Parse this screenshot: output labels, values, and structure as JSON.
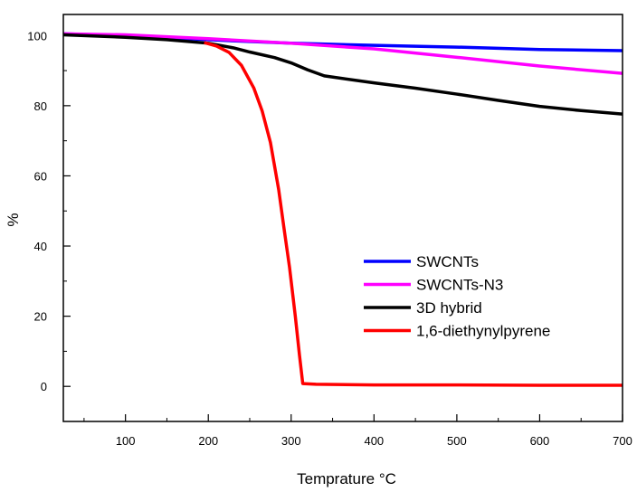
{
  "chart_data": {
    "type": "line",
    "title": "",
    "xlabel": "Temprature ",
    "xlabel_unit": "°C",
    "ylabel": "%",
    "xlim": [
      25,
      700
    ],
    "ylim": [
      -10,
      106
    ],
    "x_major_ticks": [
      100,
      200,
      300,
      400,
      500,
      600,
      700
    ],
    "x_minor_ticks": [
      50,
      150,
      250,
      350,
      450,
      550,
      650
    ],
    "y_major_ticks": [
      0,
      20,
      40,
      60,
      80,
      100
    ],
    "y_minor_ticks": [
      -10,
      10,
      30,
      50,
      70,
      90
    ],
    "grid": false,
    "legend_position": "bottom-right",
    "series": [
      {
        "name": "SWCNTs",
        "color": "#0000ff",
        "points": [
          [
            25,
            100.5
          ],
          [
            100,
            100.0
          ],
          [
            200,
            98.8
          ],
          [
            300,
            97.8
          ],
          [
            400,
            97.2
          ],
          [
            500,
            96.7
          ],
          [
            600,
            96.0
          ],
          [
            700,
            95.7
          ]
        ]
      },
      {
        "name": "SWCNTs-N3",
        "color": "#ff00ff",
        "points": [
          [
            25,
            100.5
          ],
          [
            100,
            100.2
          ],
          [
            200,
            99.1
          ],
          [
            300,
            97.8
          ],
          [
            400,
            96.2
          ],
          [
            500,
            93.8
          ],
          [
            600,
            91.3
          ],
          [
            700,
            89.2
          ]
        ]
      },
      {
        "name": "3D hybrid",
        "color": "#000000",
        "points": [
          [
            25,
            100.2
          ],
          [
            100,
            99.5
          ],
          [
            150,
            98.8
          ],
          [
            200,
            97.8
          ],
          [
            230,
            96.5
          ],
          [
            250,
            95.3
          ],
          [
            280,
            93.7
          ],
          [
            300,
            92.2
          ],
          [
            320,
            90.2
          ],
          [
            340,
            88.5
          ],
          [
            400,
            86.5
          ],
          [
            450,
            85.0
          ],
          [
            500,
            83.3
          ],
          [
            550,
            81.5
          ],
          [
            600,
            79.8
          ],
          [
            650,
            78.6
          ],
          [
            700,
            77.6
          ]
        ]
      },
      {
        "name": "1,6-diethynylpyrene",
        "color": "#ff0000",
        "points": [
          [
            195,
            98.0
          ],
          [
            210,
            97.0
          ],
          [
            225,
            95.2
          ],
          [
            240,
            91.5
          ],
          [
            255,
            85.0
          ],
          [
            265,
            78.5
          ],
          [
            275,
            69.5
          ],
          [
            285,
            56.0
          ],
          [
            292,
            44.0
          ],
          [
            298,
            34.0
          ],
          [
            305,
            20.0
          ],
          [
            310,
            9.0
          ],
          [
            314,
            0.8
          ],
          [
            330,
            0.6
          ],
          [
            400,
            0.4
          ],
          [
            500,
            0.4
          ],
          [
            600,
            0.3
          ],
          [
            700,
            0.3
          ]
        ]
      }
    ]
  }
}
